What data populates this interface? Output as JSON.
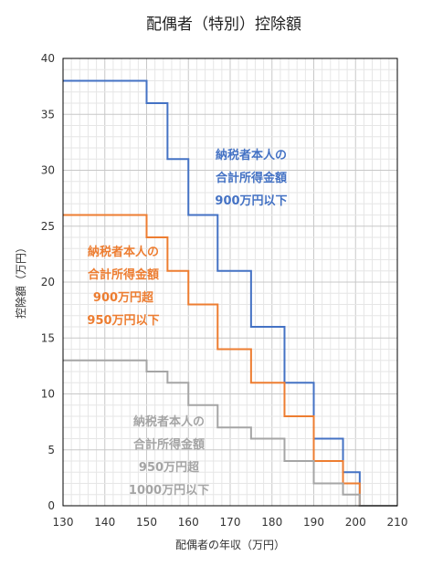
{
  "chart_data": {
    "type": "line",
    "title": "配偶者（特別）控除額",
    "xlabel": "配偶者の年収（万円）",
    "ylabel": "控除額（万円）",
    "xlim": [
      130,
      210
    ],
    "ylim": [
      0,
      40
    ],
    "x_ticks": [
      "130",
      "140",
      "150",
      "160",
      "170",
      "180",
      "190",
      "200",
      "210"
    ],
    "y_ticks": [
      "0",
      "5",
      "10",
      "15",
      "20",
      "25",
      "30",
      "35",
      "40"
    ],
    "grid": true,
    "series": [
      {
        "color": "#4472C4",
        "annotation": [
          "納税者本人の",
          "合計所得金額",
          "900万円以下"
        ],
        "x": [
          130,
          150,
          155,
          160,
          167,
          175,
          183,
          190,
          197,
          201
        ],
        "y": [
          38,
          36,
          31,
          26,
          21,
          16,
          11,
          6,
          3,
          0
        ]
      },
      {
        "color": "#ED7D31",
        "annotation": [
          "納税者本人の",
          "合計所得金額",
          "900万円超",
          "950万円以下"
        ],
        "x": [
          130,
          150,
          155,
          160,
          167,
          175,
          183,
          190,
          197,
          201
        ],
        "y": [
          26,
          24,
          21,
          18,
          14,
          11,
          8,
          4,
          2,
          0
        ]
      },
      {
        "color": "#A5A5A5",
        "annotation": [
          "納税者本人の",
          "合計所得金額",
          "950万円超",
          "1000万円以下"
        ],
        "x": [
          130,
          150,
          155,
          160,
          167,
          175,
          183,
          190,
          197,
          201
        ],
        "y": [
          13,
          12,
          11,
          9,
          7,
          6,
          4,
          2,
          1,
          0
        ]
      }
    ]
  }
}
